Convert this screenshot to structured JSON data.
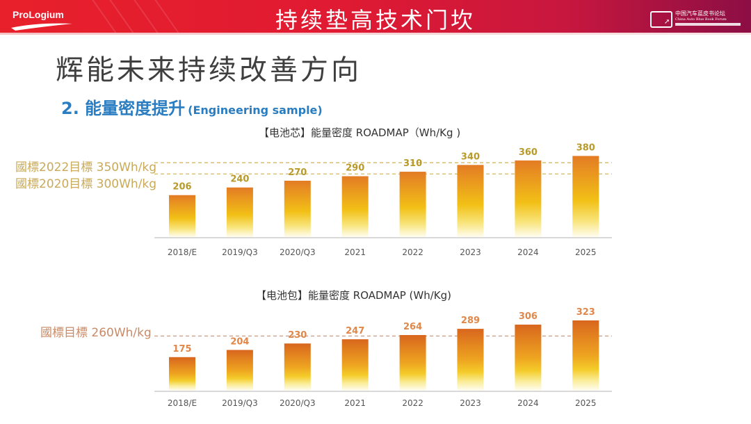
{
  "header": {
    "logo_text": "ProLogium",
    "title": "持续垫高技术门坎",
    "forum_logo": {
      "cn": "中国汽车蓝皮书论坛",
      "en": "China Auto Blue Book Forum"
    }
  },
  "main_title": "辉能未来持续改善方向",
  "section": {
    "title": "2. 能量密度提升",
    "subtitle": "(Engineering sample)"
  },
  "colors": {
    "header_red": "#e01a32",
    "header_magenta": "#8c0e44",
    "section_blue": "#2a7dc0",
    "cell_label": "#b89a2a",
    "pack_label": "#e0874a",
    "bar_top": "#e37b25",
    "bar_mid": "#f2c016",
    "target_line": "#d4b860"
  },
  "chart_data": [
    {
      "type": "bar",
      "title": "【电池芯】能量密度 ROADMAP（Wh/Kg )",
      "xlabel": "",
      "ylabel": "Wh/Kg",
      "categories": [
        "2018/E",
        "2019/Q3",
        "2020/Q3",
        "2021",
        "2022",
        "2023",
        "2024",
        "2025"
      ],
      "values": [
        206,
        240,
        270,
        290,
        310,
        340,
        360,
        380
      ],
      "data_labels": [
        "206",
        "240",
        "270",
        "290",
        "310",
        "340",
        "360",
        "380"
      ],
      "reference_lines": [
        {
          "label": "國標2022目標 350Wh/kg",
          "value": 350
        },
        {
          "label": "國標2020目標 300Wh/kg",
          "value": 300
        }
      ],
      "grid": false,
      "legend": "none"
    },
    {
      "type": "bar",
      "title": "【电池包】能量密度 ROADMAP (Wh/Kg)",
      "xlabel": "",
      "ylabel": "Wh/Kg",
      "categories": [
        "2018/E",
        "2019/Q3",
        "2020/Q3",
        "2021",
        "2022",
        "2023",
        "2024",
        "2025"
      ],
      "values": [
        175,
        204,
        230,
        247,
        264,
        289,
        306,
        323
      ],
      "data_labels": [
        "175",
        "204",
        "230",
        "247",
        "264",
        "289",
        "306",
        "323"
      ],
      "reference_lines": [
        {
          "label": "國標目標 260Wh/kg",
          "value": 260
        }
      ],
      "grid": false,
      "legend": "none"
    }
  ]
}
